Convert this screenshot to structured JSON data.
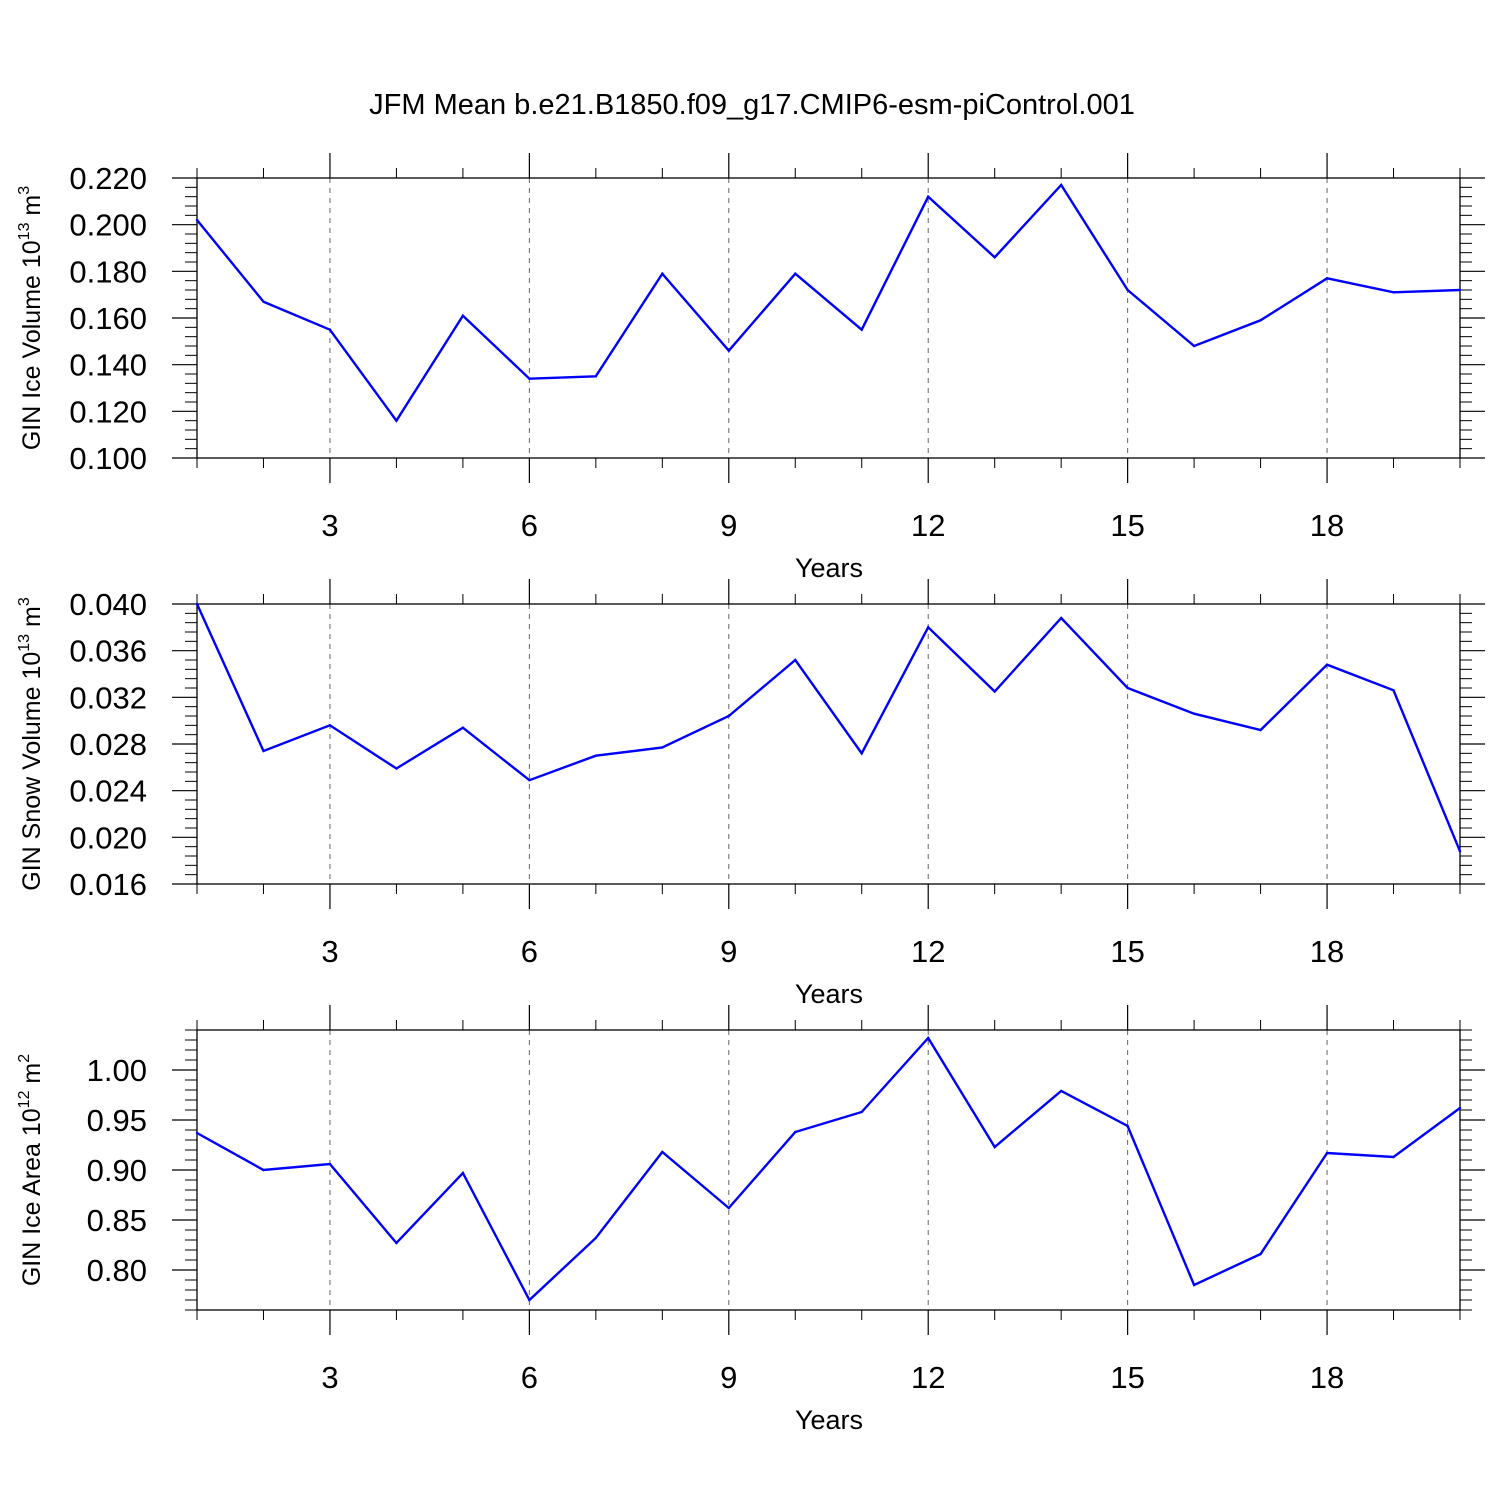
{
  "figure": {
    "title": "JFM Mean b.e21.B1850.f09_g17.CMIP6-esm-piControl.001"
  },
  "chart_data": [
    {
      "type": "line",
      "name": "ice-volume",
      "ylabel_prefix": "GIN Ice Volume 10",
      "ylabel_exp": "13",
      "ylabel_unit": " m",
      "ylabel_unit_exp": "3",
      "xlabel": "Years",
      "x": [
        1,
        2,
        3,
        4,
        5,
        6,
        7,
        8,
        9,
        10,
        11,
        12,
        13,
        14,
        15,
        16,
        17,
        18,
        19,
        20
      ],
      "series": [
        {
          "color": "#0000ff",
          "values": [
            0.202,
            0.167,
            0.155,
            0.116,
            0.161,
            0.134,
            0.135,
            0.179,
            0.146,
            0.179,
            0.155,
            0.212,
            0.186,
            0.217,
            0.172,
            0.148,
            0.159,
            0.177,
            0.171,
            0.172
          ]
        }
      ],
      "xlim": [
        1,
        20
      ],
      "ylim": [
        0.1,
        0.22
      ],
      "xticks": [
        3,
        6,
        9,
        12,
        15,
        18
      ],
      "xtick_labels": [
        "3",
        "6",
        "9",
        "12",
        "15",
        "18"
      ],
      "yticks": [
        0.1,
        0.12,
        0.14,
        0.16,
        0.18,
        0.2,
        0.22
      ],
      "ytick_labels": [
        "0.100",
        "0.120",
        "0.140",
        "0.160",
        "0.180",
        "0.200",
        "0.220"
      ],
      "grid": "vertical dashed at major x ticks"
    },
    {
      "type": "line",
      "name": "snow-volume",
      "ylabel_prefix": "GIN Snow Volume 10",
      "ylabel_exp": "13",
      "ylabel_unit": " m",
      "ylabel_unit_exp": "3",
      "xlabel": "Years",
      "x": [
        1,
        2,
        3,
        4,
        5,
        6,
        7,
        8,
        9,
        10,
        11,
        12,
        13,
        14,
        15,
        16,
        17,
        18,
        19,
        20
      ],
      "series": [
        {
          "color": "#0000ff",
          "values": [
            0.04,
            0.0274,
            0.0296,
            0.0259,
            0.0294,
            0.0249,
            0.027,
            0.0277,
            0.0304,
            0.0352,
            0.0272,
            0.038,
            0.0325,
            0.0388,
            0.0328,
            0.0306,
            0.0292,
            0.0348,
            0.0326,
            0.0188
          ]
        }
      ],
      "xlim": [
        1,
        20
      ],
      "ylim": [
        0.016,
        0.04
      ],
      "xticks": [
        3,
        6,
        9,
        12,
        15,
        18
      ],
      "xtick_labels": [
        "3",
        "6",
        "9",
        "12",
        "15",
        "18"
      ],
      "yticks": [
        0.016,
        0.02,
        0.024,
        0.028,
        0.032,
        0.036,
        0.04
      ],
      "ytick_labels": [
        "0.016",
        "0.020",
        "0.024",
        "0.028",
        "0.032",
        "0.036",
        "0.040"
      ],
      "grid": "vertical dashed at major x ticks"
    },
    {
      "type": "line",
      "name": "ice-area",
      "ylabel_prefix": "GIN Ice Area 10",
      "ylabel_exp": "12",
      "ylabel_unit": " m",
      "ylabel_unit_exp": "2",
      "xlabel": "Years",
      "x": [
        1,
        2,
        3,
        4,
        5,
        6,
        7,
        8,
        9,
        10,
        11,
        12,
        13,
        14,
        15,
        16,
        17,
        18,
        19,
        20
      ],
      "series": [
        {
          "color": "#0000ff",
          "values": [
            0.937,
            0.9,
            0.906,
            0.827,
            0.897,
            0.77,
            0.832,
            0.918,
            0.862,
            0.938,
            0.958,
            1.032,
            0.923,
            0.979,
            0.944,
            0.785,
            0.816,
            0.917,
            0.913,
            0.962
          ]
        }
      ],
      "xlim": [
        1,
        20
      ],
      "ylim": [
        0.76,
        1.04
      ],
      "xticks": [
        3,
        6,
        9,
        12,
        15,
        18
      ],
      "xtick_labels": [
        "3",
        "6",
        "9",
        "12",
        "15",
        "18"
      ],
      "yticks": [
        0.8,
        0.85,
        0.9,
        0.95,
        1.0
      ],
      "ytick_labels": [
        "0.80",
        "0.85",
        "0.90",
        "0.95",
        "1.00"
      ],
      "grid": "vertical dashed at major x ticks"
    }
  ]
}
